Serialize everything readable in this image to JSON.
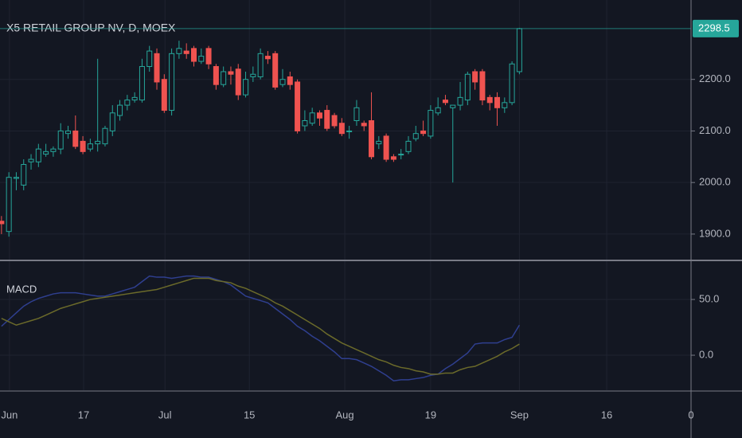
{
  "chart_data": [
    {
      "type": "candlestick",
      "title": "X5 RETAIL GROUP NV, D, MOEX",
      "up_color": "#26a69a",
      "down_color": "#ef5350",
      "grid": true,
      "ylim": [
        1852,
        2354
      ],
      "yticks": [
        {
          "value": 1900,
          "label": "1900.0"
        },
        {
          "value": 2000,
          "label": "2000.0"
        },
        {
          "value": 2100,
          "label": "2100.0"
        },
        {
          "value": 2200,
          "label": "2200.0"
        }
      ],
      "xlim": [
        -0.2,
        93.2
      ],
      "xticks": [
        {
          "value": 1.08,
          "label": "Jun"
        },
        {
          "value": 11.1,
          "label": "17"
        },
        {
          "value": 22.1,
          "label": "Jul"
        },
        {
          "value": 33.5,
          "label": "15"
        },
        {
          "value": 46.4,
          "label": "Aug"
        },
        {
          "value": 58.0,
          "label": "19"
        },
        {
          "value": 70.0,
          "label": "Sep"
        },
        {
          "value": 81.8,
          "label": "16"
        },
        {
          "value": 93.2,
          "label": "0"
        }
      ],
      "open": [
        1925,
        1905,
        2008,
        1995,
        2040,
        2040,
        2055,
        2060,
        2065,
        2095,
        2100,
        2080,
        2065,
        2075,
        2075,
        2100,
        2130,
        2150,
        2160,
        2160,
        2225,
        2250,
        2200,
        2140,
        2250,
        2255,
        2260,
        2235,
        2260,
        2225,
        2190,
        2215,
        2220,
        2170,
        2205,
        2205,
        2245,
        2250,
        2190,
        2205,
        2195,
        2110,
        2115,
        2135,
        2140,
        2130,
        2115,
        2100,
        2120,
        2115,
        2120,
        2075,
        2090,
        2050,
        2055,
        2060,
        2085,
        2100,
        2090,
        2135,
        2160,
        2145,
        2150,
        2160,
        2215,
        2215,
        2165,
        2165,
        2145,
        2155,
        2215
      ],
      "high": [
        1935,
        2020,
        2020,
        2045,
        2055,
        2075,
        2075,
        2070,
        2115,
        2110,
        2130,
        2090,
        2085,
        2240,
        2110,
        2150,
        2160,
        2170,
        2175,
        2240,
        2265,
        2260,
        2210,
        2260,
        2275,
        2270,
        2265,
        2260,
        2265,
        2230,
        2225,
        2225,
        2230,
        2215,
        2225,
        2260,
        2255,
        2255,
        2220,
        2215,
        2200,
        2140,
        2145,
        2140,
        2150,
        2135,
        2125,
        2110,
        2160,
        2120,
        2175,
        2090,
        2095,
        2055,
        2065,
        2090,
        2110,
        2120,
        2150,
        2165,
        2170,
        2150,
        2195,
        2215,
        2220,
        2220,
        2170,
        2175,
        2165,
        2235,
        2300
      ],
      "low": [
        1900,
        1895,
        1985,
        1985,
        2025,
        2030,
        2050,
        2050,
        2055,
        2085,
        2065,
        2055,
        2060,
        2060,
        2070,
        2090,
        2120,
        2140,
        2155,
        2155,
        2215,
        2180,
        2135,
        2130,
        2240,
        2240,
        2225,
        2230,
        2220,
        2180,
        2185,
        2190,
        2160,
        2165,
        2195,
        2200,
        2230,
        2180,
        2185,
        2180,
        2095,
        2100,
        2110,
        2110,
        2100,
        2105,
        2090,
        2085,
        2110,
        2100,
        2045,
        2065,
        2040,
        2040,
        2045,
        2055,
        2080,
        2090,
        2085,
        2130,
        2150,
        2000,
        2140,
        2150,
        2180,
        2150,
        2140,
        2110,
        2135,
        2150,
        2210
      ],
      "close": [
        1920,
        2010,
        2010,
        2035,
        2045,
        2065,
        2060,
        2065,
        2100,
        2100,
        2070,
        2060,
        2075,
        2080,
        2105,
        2135,
        2150,
        2160,
        2165,
        2225,
        2255,
        2195,
        2140,
        2250,
        2260,
        2250,
        2235,
        2245,
        2230,
        2190,
        2215,
        2210,
        2170,
        2200,
        2210,
        2250,
        2240,
        2185,
        2200,
        2190,
        2100,
        2120,
        2135,
        2125,
        2105,
        2110,
        2095,
        2100,
        2145,
        2110,
        2050,
        2080,
        2045,
        2045,
        2055,
        2080,
        2095,
        2095,
        2140,
        2145,
        2155,
        2150,
        2165,
        2210,
        2195,
        2160,
        2155,
        2145,
        2155,
        2230,
        2298.5
      ]
    },
    {
      "type": "line",
      "title": "MACD",
      "grid": true,
      "ylim": [
        -31.4,
        82.9
      ],
      "yticks": [
        {
          "value": 0,
          "label": "0.0"
        },
        {
          "value": 50,
          "label": "50.0"
        }
      ],
      "series": [
        {
          "color": "#2f3f8f",
          "values": [
            26,
            32,
            38,
            44,
            48,
            51,
            53,
            55,
            56,
            56,
            56,
            55,
            54,
            53,
            53,
            55,
            57,
            59,
            61,
            66,
            71,
            70,
            70,
            69,
            70,
            71,
            71,
            70,
            70,
            68,
            66,
            63,
            58,
            53,
            51,
            49,
            47,
            42,
            37,
            32,
            26,
            22,
            17,
            13,
            8,
            3,
            -3,
            -3,
            -4,
            -7,
            -10,
            -14,
            -18,
            -23,
            -22,
            -22,
            -21,
            -20,
            -18,
            -17,
            -12,
            -8,
            -3,
            2,
            10,
            11,
            11,
            11,
            14,
            16,
            27
          ]
        },
        {
          "color": "#6b6a2a",
          "values": [
            33,
            30,
            27,
            29,
            31,
            33,
            36,
            39,
            42,
            44,
            46,
            48,
            50,
            51,
            52,
            53,
            54,
            55,
            56,
            57,
            58,
            59,
            61,
            63,
            65,
            67,
            69,
            69,
            69,
            67,
            66,
            65,
            62,
            60,
            57,
            54,
            51,
            47,
            44,
            40,
            36,
            32,
            28,
            24,
            19,
            15,
            11,
            8,
            5,
            2,
            -1,
            -4,
            -6,
            -9,
            -11,
            -12,
            -14,
            -15,
            -17,
            -17,
            -16,
            -16,
            -13,
            -11,
            -10,
            -7,
            -4,
            -1,
            3,
            6,
            10
          ]
        }
      ]
    }
  ]
}
